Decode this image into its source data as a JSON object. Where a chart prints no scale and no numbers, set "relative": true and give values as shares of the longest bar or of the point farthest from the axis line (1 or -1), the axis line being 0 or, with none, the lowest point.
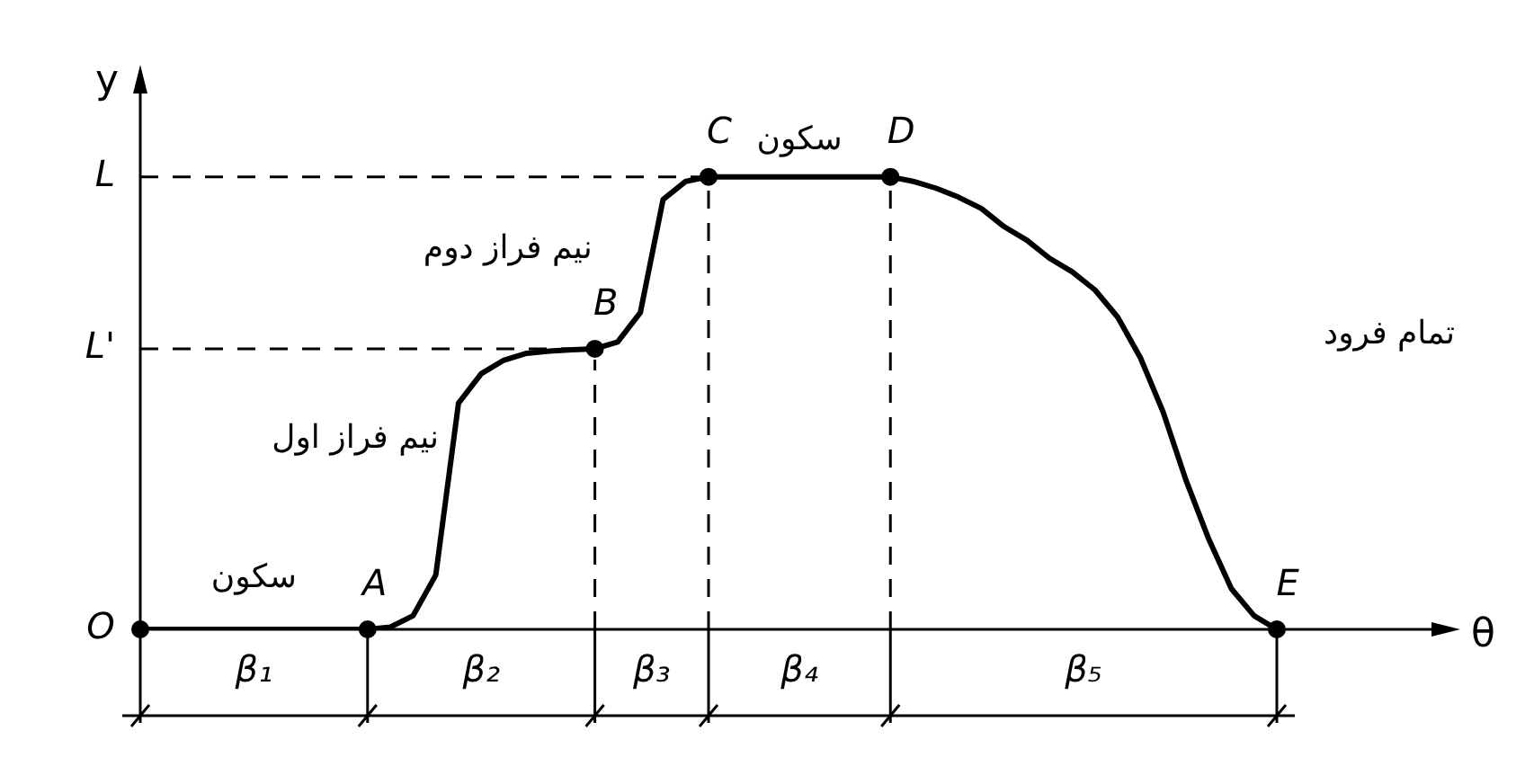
{
  "chart_data": {
    "type": "line",
    "relative": true,
    "xlabel": "θ",
    "ylabel": "y",
    "categories": [
      null,
      null,
      null,
      null,
      null,
      null,
      null,
      null,
      null,
      null,
      null,
      null,
      null,
      null,
      null,
      null,
      null,
      null,
      null,
      null,
      null,
      null,
      null,
      null,
      null,
      null,
      null,
      null,
      null,
      null,
      null,
      null,
      null,
      null,
      null,
      null,
      null,
      null,
      null,
      null,
      null,
      null,
      null,
      null,
      null,
      null,
      null,
      null,
      null,
      null,
      null
    ],
    "series": [
      {
        "color": "#000000",
        "values": [
          0,
          0,
          0,
          0,
          0,
          0,
          0,
          0,
          0,
          0,
          0,
          0.005,
          0.03,
          0.12,
          0.5,
          0.565,
          0.595,
          0.61,
          0.615,
          0.618,
          0.62,
          0.635,
          0.7,
          0.95,
          0.99,
          1,
          1,
          1,
          1,
          1,
          1,
          1,
          1,
          1,
          0.99,
          0.975,
          0.955,
          0.93,
          0.89,
          0.86,
          0.82,
          0.79,
          0.75,
          0.69,
          0.6,
          0.48,
          0.33,
          0.2,
          0.09,
          0.03,
          0
        ]
      }
    ],
    "ref_lines": [
      {
        "axis": "y",
        "value": 0.62,
        "label": "L'",
        "line_style": "dashed"
      },
      {
        "axis": "y",
        "value": 1,
        "label": "L",
        "line_style": "dashed"
      }
    ],
    "annotations": [
      "O",
      "A",
      "B",
      "C",
      "D",
      "E",
      "سکون",
      "سکون",
      "نیم فراز اول",
      "نیم فراز دوم",
      "تمام فرود",
      "β₁",
      "β₂",
      "β₃",
      "β₄",
      "β₅"
    ],
    "grid": false,
    "legend": false
  }
}
